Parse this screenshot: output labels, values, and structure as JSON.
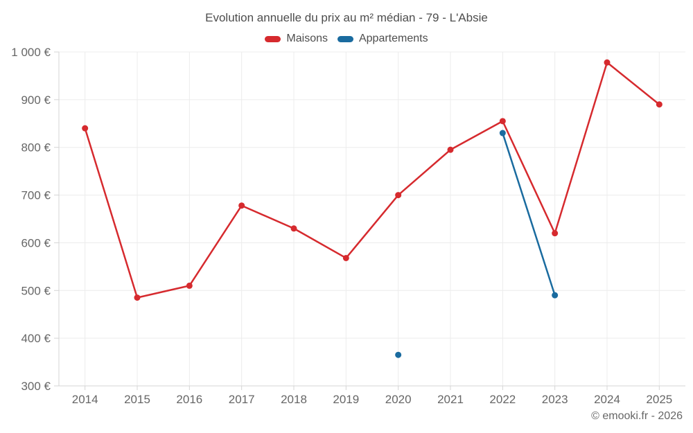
{
  "header": {
    "title": "Evolution annuelle du prix au m² médian - 79 - L'Absie"
  },
  "footer": {
    "copyright": "© emooki.fr - 2026"
  },
  "chart_data": {
    "type": "line",
    "title": "Evolution annuelle du prix au m² médian - 79 - L'Absie",
    "xlabel": "",
    "ylabel": "",
    "categories": [
      "2014",
      "2015",
      "2016",
      "2017",
      "2018",
      "2019",
      "2020",
      "2021",
      "2022",
      "2023",
      "2024",
      "2025"
    ],
    "series": [
      {
        "name": "Maisons",
        "color": "#d62a2e",
        "values": [
          840,
          485,
          510,
          678,
          630,
          568,
          700,
          795,
          855,
          620,
          978,
          890
        ]
      },
      {
        "name": "Appartements",
        "color": "#1a6b9f",
        "values": [
          null,
          null,
          null,
          null,
          null,
          null,
          365,
          null,
          830,
          490,
          null,
          null
        ]
      }
    ],
    "ylim": [
      300,
      1000
    ],
    "y_ticks": [
      {
        "value": 300,
        "label": "300 €"
      },
      {
        "value": 400,
        "label": "400 €"
      },
      {
        "value": 500,
        "label": "500 €"
      },
      {
        "value": 600,
        "label": "600 €"
      },
      {
        "value": 700,
        "label": "700 €"
      },
      {
        "value": 800,
        "label": "800 €"
      },
      {
        "value": 900,
        "label": "900 €"
      },
      {
        "value": 1000,
        "label": "1 000 €"
      }
    ],
    "grid": true,
    "legend_position": "top",
    "colors": {
      "grid": "#ececec",
      "axis": "#d4d4d4",
      "tick_text": "#666666",
      "title_text": "#4d4d4d"
    }
  }
}
